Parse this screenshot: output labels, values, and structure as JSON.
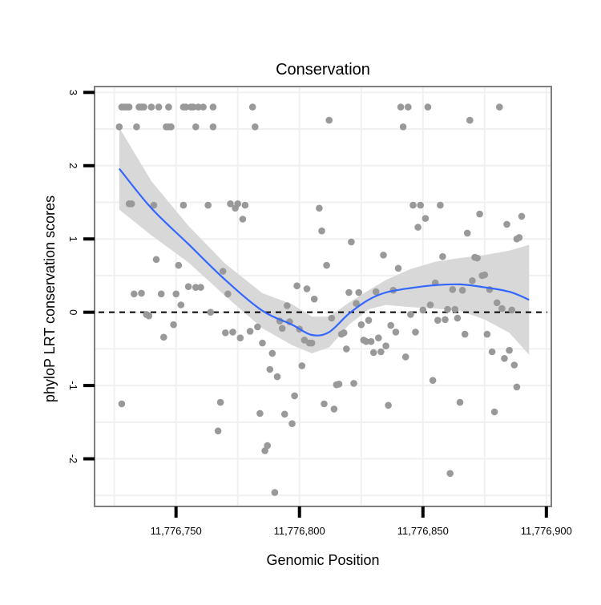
{
  "chart_data": {
    "type": "scatter",
    "title": "Conservation",
    "xlabel": "Genomic Position",
    "ylabel": "phyloP LRT conservation scores",
    "xlim": [
      11776717,
      11776902
    ],
    "ylim": [
      -2.65,
      3.08
    ],
    "x_ticks": [
      11776750,
      11776800,
      11776850,
      11776900
    ],
    "x_tick_labels": [
      "11,776,750",
      "11,776,800",
      "11,776,850",
      "11,776,900"
    ],
    "y_ticks": [
      -2,
      -1,
      0,
      1,
      2,
      3
    ],
    "y_tick_labels": [
      "-2",
      "-1",
      "0",
      "1",
      "2",
      "3"
    ],
    "grid": true,
    "reference_line": {
      "y": 0,
      "style": "dashed"
    },
    "colors": {
      "points": "#999999",
      "trend": "#3366ff",
      "ribbon": "#d6d6d6",
      "grid": "#f0f0f0",
      "panel_border": "#7f7f7f"
    },
    "points": [
      [
        11776727,
        2.53
      ],
      [
        11776728,
        2.8
      ],
      [
        11776729,
        2.8
      ],
      [
        11776730,
        2.8
      ],
      [
        11776731,
        2.8
      ],
      [
        11776728,
        -1.25
      ],
      [
        11776731,
        1.48
      ],
      [
        11776732,
        1.48
      ],
      [
        11776733,
        0.25
      ],
      [
        11776734,
        2.53
      ],
      [
        11776735,
        2.8
      ],
      [
        11776736,
        2.8
      ],
      [
        11776736,
        0.26
      ],
      [
        11776737,
        2.8
      ],
      [
        11776738,
        -0.03
      ],
      [
        11776739,
        -0.05
      ],
      [
        11776740,
        2.8
      ],
      [
        11776741,
        1.46
      ],
      [
        11776742,
        0.72
      ],
      [
        11776743,
        2.8
      ],
      [
        11776744,
        0.25
      ],
      [
        11776745,
        -0.34
      ],
      [
        11776746,
        2.53
      ],
      [
        11776747,
        2.53
      ],
      [
        11776747,
        2.8
      ],
      [
        11776748,
        2.53
      ],
      [
        11776749,
        -0.17
      ],
      [
        11776750,
        0.25
      ],
      [
        11776751,
        0.64
      ],
      [
        11776752,
        0.1
      ],
      [
        11776753,
        1.46
      ],
      [
        11776753,
        2.8
      ],
      [
        11776754,
        2.8
      ],
      [
        11776755,
        0.35
      ],
      [
        11776756,
        2.8
      ],
      [
        11776757,
        2.8
      ],
      [
        11776758,
        0.34
      ],
      [
        11776758,
        2.53
      ],
      [
        11776759,
        2.8
      ],
      [
        11776760,
        0.34
      ],
      [
        11776761,
        2.8
      ],
      [
        11776763,
        1.46
      ],
      [
        11776764,
        0.0
      ],
      [
        11776765,
        2.53
      ],
      [
        11776765,
        2.8
      ],
      [
        11776767,
        -1.62
      ],
      [
        11776768,
        -1.23
      ],
      [
        11776769,
        0.56
      ],
      [
        11776770,
        -0.28
      ],
      [
        11776771,
        0.25
      ],
      [
        11776772,
        1.48
      ],
      [
        11776773,
        -0.27
      ],
      [
        11776774,
        1.42
      ],
      [
        11776775,
        1.48
      ],
      [
        11776776,
        -0.35
      ],
      [
        11776777,
        1.27
      ],
      [
        11776778,
        1.46
      ],
      [
        11776780,
        -0.26
      ],
      [
        11776781,
        2.8
      ],
      [
        11776782,
        2.53
      ],
      [
        11776783,
        -0.2
      ],
      [
        11776784,
        -1.38
      ],
      [
        11776785,
        -0.42
      ],
      [
        11776786,
        -1.89
      ],
      [
        11776787,
        -1.82
      ],
      [
        11776788,
        -0.78
      ],
      [
        11776789,
        -0.56
      ],
      [
        11776790,
        -2.46
      ],
      [
        11776791,
        -0.88
      ],
      [
        11776792,
        -0.12
      ],
      [
        11776793,
        -0.22
      ],
      [
        11776794,
        -1.39
      ],
      [
        11776795,
        0.09
      ],
      [
        11776796,
        -0.13
      ],
      [
        11776797,
        -1.52
      ],
      [
        11776798,
        -1.14
      ],
      [
        11776799,
        0.36
      ],
      [
        11776800,
        -0.23
      ],
      [
        11776801,
        -0.73
      ],
      [
        11776802,
        -0.38
      ],
      [
        11776803,
        0.32
      ],
      [
        11776804,
        -0.42
      ],
      [
        11776805,
        -0.42
      ],
      [
        11776806,
        0.18
      ],
      [
        11776808,
        1.42
      ],
      [
        11776809,
        1.11
      ],
      [
        11776810,
        -1.25
      ],
      [
        11776811,
        0.64
      ],
      [
        11776812,
        2.62
      ],
      [
        11776813,
        -0.08
      ],
      [
        11776814,
        -1.32
      ],
      [
        11776815,
        -0.99
      ],
      [
        11776816,
        -0.98
      ],
      [
        11776817,
        -0.3
      ],
      [
        11776818,
        -0.28
      ],
      [
        11776819,
        -0.5
      ],
      [
        11776820,
        0.27
      ],
      [
        11776821,
        0.96
      ],
      [
        11776822,
        -0.97
      ],
      [
        11776823,
        0.12
      ],
      [
        11776824,
        0.27
      ],
      [
        11776825,
        -0.17
      ],
      [
        11776826,
        -0.38
      ],
      [
        11776827,
        -0.4
      ],
      [
        11776828,
        -0.11
      ],
      [
        11776829,
        -0.4
      ],
      [
        11776830,
        -0.55
      ],
      [
        11776831,
        0.28
      ],
      [
        11776832,
        -0.35
      ],
      [
        11776833,
        -0.54
      ],
      [
        11776834,
        0.78
      ],
      [
        11776835,
        -0.46
      ],
      [
        11776836,
        -1.27
      ],
      [
        11776837,
        -0.18
      ],
      [
        11776838,
        0.3
      ],
      [
        11776839,
        -0.27
      ],
      [
        11776840,
        0.6
      ],
      [
        11776841,
        2.8
      ],
      [
        11776842,
        2.53
      ],
      [
        11776843,
        -0.61
      ],
      [
        11776844,
        2.8
      ],
      [
        11776845,
        -0.03
      ],
      [
        11776846,
        1.46
      ],
      [
        11776847,
        -0.27
      ],
      [
        11776848,
        1.16
      ],
      [
        11776849,
        1.46
      ],
      [
        11776850,
        0.03
      ],
      [
        11776851,
        1.28
      ],
      [
        11776852,
        2.8
      ],
      [
        11776853,
        0.1
      ],
      [
        11776854,
        -0.93
      ],
      [
        11776855,
        0.4
      ],
      [
        11776856,
        -0.11
      ],
      [
        11776857,
        1.46
      ],
      [
        11776858,
        0.76
      ],
      [
        11776859,
        -0.1
      ],
      [
        11776860,
        0.04
      ],
      [
        11776861,
        -2.2
      ],
      [
        11776862,
        0.31
      ],
      [
        11776863,
        0.04
      ],
      [
        11776864,
        -0.08
      ],
      [
        11776865,
        -1.23
      ],
      [
        11776866,
        0.3
      ],
      [
        11776867,
        -0.3
      ],
      [
        11776868,
        1.08
      ],
      [
        11776869,
        2.62
      ],
      [
        11776870,
        0.43
      ],
      [
        11776871,
        0.75
      ],
      [
        11776872,
        0.74
      ],
      [
        11776873,
        1.34
      ],
      [
        11776874,
        0.5
      ],
      [
        11776875,
        0.51
      ],
      [
        11776876,
        -0.3
      ],
      [
        11776877,
        0.31
      ],
      [
        11776878,
        -0.54
      ],
      [
        11776879,
        -1.36
      ],
      [
        11776880,
        0.13
      ],
      [
        11776881,
        2.8
      ],
      [
        11776882,
        0.05
      ],
      [
        11776883,
        -0.63
      ],
      [
        11776884,
        1.2
      ],
      [
        11776885,
        -0.52
      ],
      [
        11776886,
        0.03
      ],
      [
        11776887,
        -0.72
      ],
      [
        11776888,
        -1.02
      ],
      [
        11776889,
        1.02
      ],
      [
        11776890,
        1.31
      ],
      [
        11776888,
        1.0
      ]
    ],
    "trend": {
      "x": [
        11776727,
        11776740,
        11776755,
        11776770,
        11776785,
        11776797,
        11776805,
        11776812,
        11776820,
        11776828,
        11776835,
        11776845,
        11776855,
        11776865,
        11776875,
        11776885,
        11776893
      ],
      "y": [
        1.96,
        1.42,
        0.93,
        0.44,
        0.02,
        -0.17,
        -0.31,
        -0.27,
        -0.02,
        0.17,
        0.27,
        0.33,
        0.37,
        0.38,
        0.34,
        0.28,
        0.17
      ],
      "lower": [
        1.4,
        1.05,
        0.68,
        0.22,
        -0.22,
        -0.45,
        -0.56,
        -0.48,
        -0.17,
        0.04,
        0.1,
        0.07,
        0.05,
        0.02,
        -0.1,
        -0.28,
        -0.58
      ],
      "upper": [
        2.52,
        1.79,
        1.18,
        0.66,
        0.26,
        0.11,
        -0.06,
        -0.06,
        0.13,
        0.3,
        0.44,
        0.59,
        0.69,
        0.74,
        0.78,
        0.84,
        0.92
      ]
    }
  }
}
